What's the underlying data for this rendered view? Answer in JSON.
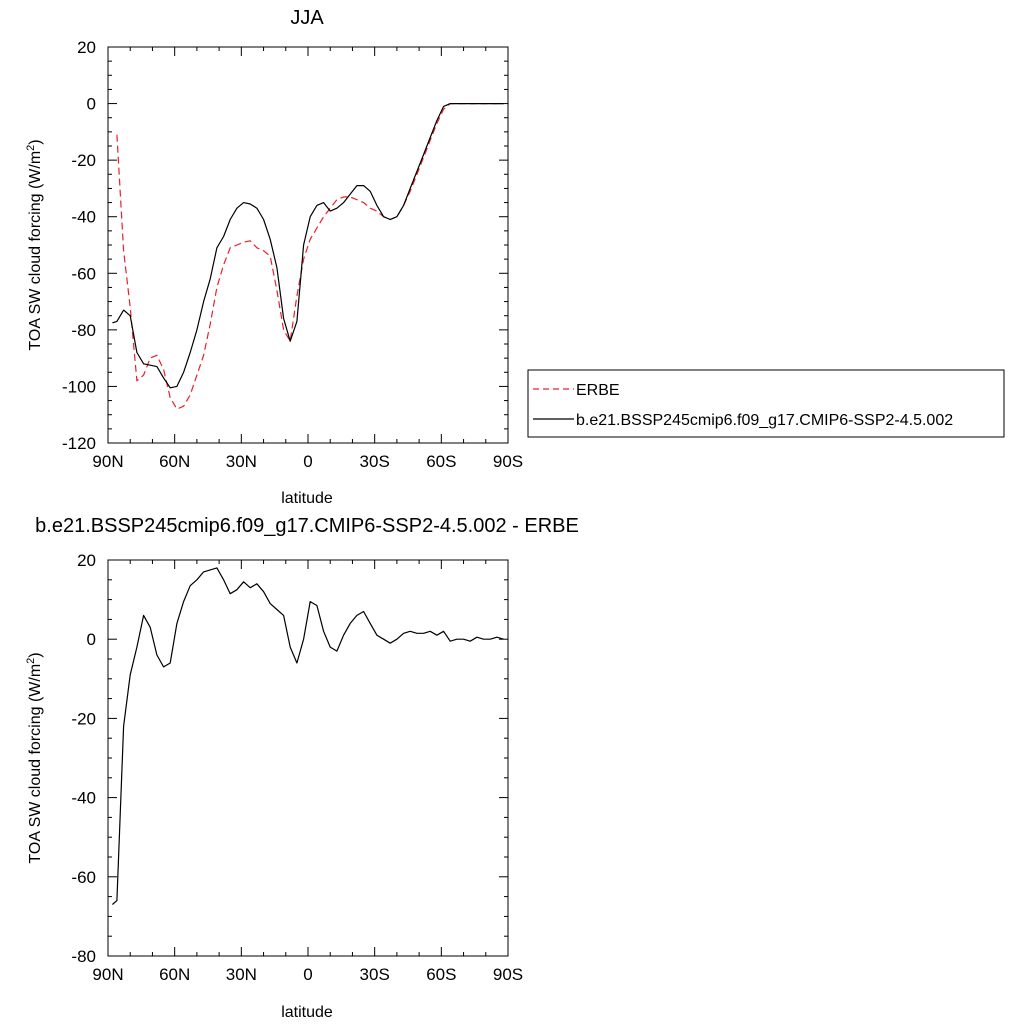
{
  "chart_data": [
    {
      "type": "line",
      "title": "JJA",
      "xlabel": "latitude",
      "ylabel": "TOA SW cloud forcing (W/m",
      "ylabel_sup": "2",
      "ylabel_close": ")",
      "xlim": [
        90,
        -90
      ],
      "ylim": [
        -120,
        20
      ],
      "xticks": [
        90,
        60,
        30,
        0,
        -30,
        -60,
        -90
      ],
      "xtick_labels": [
        "90N",
        "60N",
        "30N",
        "0",
        "30S",
        "60S",
        "90S"
      ],
      "yticks": [
        20,
        0,
        -20,
        -40,
        -60,
        -80,
        -100,
        -120
      ],
      "ytick_labels": [
        "20",
        "0",
        "-20",
        "-40",
        "-60",
        "-80",
        "-100",
        "-120"
      ],
      "legend_position": "right",
      "series": [
        {
          "name": "ERBE",
          "color": "#e8202a",
          "style": "dashed",
          "x": [
            86,
            83,
            80,
            77,
            74,
            71,
            68,
            65,
            62,
            59,
            56,
            53,
            50,
            47,
            44,
            41,
            38,
            35,
            32,
            29,
            26,
            23,
            20,
            17,
            14,
            11,
            8,
            5,
            2,
            -1,
            -4,
            -7,
            -10,
            -13,
            -16,
            -19,
            -22,
            -25,
            -28,
            -31,
            -34,
            -37,
            -40,
            -43,
            -46,
            -49,
            -52,
            -55,
            -58,
            -61,
            -64,
            -67,
            -70,
            -73,
            -76,
            -79,
            -82,
            -85,
            -88
          ],
          "values": [
            -11,
            -52,
            -72,
            -98,
            -96,
            -90,
            -89,
            -94,
            -104,
            -108,
            -107,
            -103,
            -96,
            -89,
            -78,
            -65,
            -57,
            -51,
            -50,
            -49,
            -48.5,
            -51,
            -52,
            -54,
            -66,
            -80,
            -84,
            -68,
            -55,
            -48,
            -44,
            -40,
            -37,
            -34,
            -33,
            -33,
            -34,
            -35,
            -37,
            -38,
            -40,
            -41,
            -40,
            -36,
            -31,
            -25,
            -19,
            -13,
            -7,
            -2,
            0,
            0,
            0,
            0,
            0,
            0,
            0,
            0,
            0
          ]
        },
        {
          "name": "b.e21.BSSP245cmip6.f09_g17.CMIP6-SSP2-4.5.002",
          "color": "#000000",
          "style": "solid",
          "x": [
            88,
            86,
            83,
            80,
            77,
            74,
            71,
            68,
            65,
            62,
            59,
            56,
            53,
            50,
            47,
            44,
            41,
            38,
            35,
            32,
            29,
            26,
            23,
            20,
            17,
            14,
            11,
            8,
            5,
            2,
            -1,
            -4,
            -7,
            -10,
            -13,
            -16,
            -19,
            -22,
            -25,
            -28,
            -31,
            -34,
            -37,
            -40,
            -43,
            -46,
            -49,
            -52,
            -55,
            -58,
            -61,
            -64,
            -67,
            -70,
            -73,
            -76,
            -79,
            -82,
            -85,
            -88
          ],
          "values": [
            -77.5,
            -77,
            -73,
            -75,
            -88,
            -92,
            -92.5,
            -93,
            -97,
            -100.5,
            -100,
            -95,
            -88,
            -80,
            -70,
            -62,
            -51,
            -47,
            -41,
            -37,
            -35,
            -35.5,
            -37,
            -41,
            -48,
            -58,
            -76,
            -84,
            -77,
            -50,
            -40,
            -36,
            -35,
            -38,
            -37,
            -35,
            -32,
            -29,
            -29,
            -31,
            -36,
            -40,
            -41,
            -40,
            -36,
            -30,
            -24,
            -18,
            -12,
            -6,
            -1,
            0,
            0,
            0,
            0,
            0,
            0,
            0,
            0,
            0
          ]
        }
      ]
    },
    {
      "type": "line",
      "title": "b.e21.BSSP245cmip6.f09_g17.CMIP6-SSP2-4.5.002 - ERBE",
      "xlabel": "latitude",
      "ylabel": "TOA SW cloud forcing (W/m",
      "ylabel_sup": "2",
      "ylabel_close": ")",
      "xlim": [
        90,
        -90
      ],
      "ylim": [
        -80,
        20
      ],
      "xticks": [
        90,
        60,
        30,
        0,
        -30,
        -60,
        -90
      ],
      "xtick_labels": [
        "90N",
        "60N",
        "30N",
        "0",
        "30S",
        "60S",
        "90S"
      ],
      "yticks": [
        20,
        0,
        -20,
        -40,
        -60,
        -80
      ],
      "ytick_labels": [
        "20",
        "0",
        "-20",
        "-40",
        "-60",
        "-80"
      ],
      "series": [
        {
          "color": "#000000",
          "style": "solid",
          "x": [
            88,
            86,
            83,
            80,
            77,
            74,
            71,
            68,
            65,
            62,
            59,
            56,
            53,
            50,
            47,
            44,
            41,
            38,
            35,
            32,
            29,
            26,
            23,
            20,
            17,
            14,
            11,
            8,
            5,
            2,
            -1,
            -4,
            -7,
            -10,
            -13,
            -16,
            -19,
            -22,
            -25,
            -28,
            -31,
            -34,
            -37,
            -40,
            -43,
            -46,
            -49,
            -52,
            -55,
            -58,
            -61,
            -64,
            -67,
            -70,
            -73,
            -76,
            -79,
            -82,
            -85,
            -88
          ],
          "values": [
            -67,
            -66,
            -22,
            -9,
            -2,
            6,
            3,
            -4,
            -7,
            -6,
            4,
            9.5,
            13.5,
            15,
            17,
            17.5,
            18,
            15,
            11.5,
            12.5,
            14.5,
            13,
            14,
            12,
            9,
            7.5,
            6,
            -2,
            -6,
            0,
            9.5,
            8.5,
            2,
            -2,
            -3,
            1,
            4,
            6,
            7,
            4,
            1,
            0,
            -1,
            0,
            1.5,
            2,
            1.5,
            1.5,
            2,
            1,
            2,
            -0.5,
            0,
            0,
            -0.5,
            0.5,
            0,
            0,
            0.5,
            0
          ]
        }
      ]
    }
  ]
}
